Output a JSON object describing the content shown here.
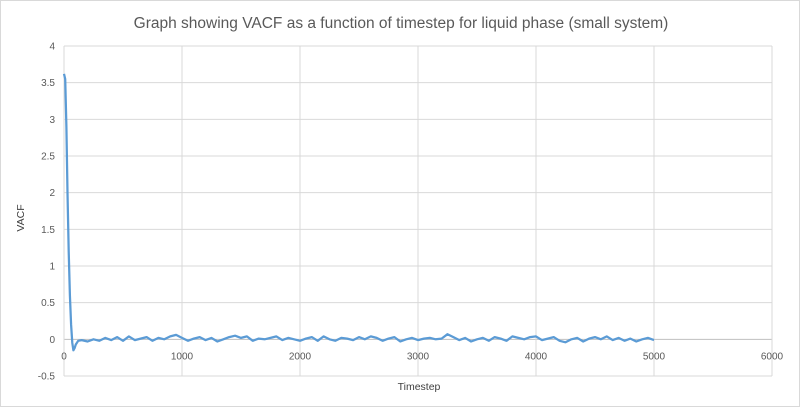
{
  "chart_data": {
    "type": "line",
    "title": "Graph showing VACF as a function of timestep for liquid phase (small system)",
    "xlabel": "Timestep",
    "ylabel": "VACF",
    "xlim": [
      0,
      6000
    ],
    "ylim": [
      -0.5,
      4
    ],
    "xticks": [
      "0",
      "1000",
      "2000",
      "3000",
      "4000",
      "5000",
      "6000"
    ],
    "yticks": [
      "-0.5",
      "0",
      "0.5",
      "1",
      "1.5",
      "2",
      "2.5",
      "3",
      "3.5",
      "4"
    ],
    "grid": true,
    "legend": "none",
    "line_color": "#5b9bd5",
    "series": [
      {
        "x": [
          0,
          10,
          20,
          30,
          40,
          50,
          60,
          70,
          80,
          90,
          100,
          120,
          150,
          200,
          250,
          300,
          350,
          400,
          450,
          500,
          550,
          600,
          650,
          700,
          750,
          800,
          850,
          900,
          950,
          1000,
          1050,
          1100,
          1150,
          1200,
          1250,
          1300,
          1350,
          1400,
          1450,
          1500,
          1550,
          1600,
          1650,
          1700,
          1750,
          1800,
          1850,
          1900,
          1950,
          2000,
          2050,
          2100,
          2150,
          2200,
          2250,
          2300,
          2350,
          2400,
          2450,
          2500,
          2550,
          2600,
          2650,
          2700,
          2750,
          2800,
          2850,
          2900,
          2950,
          3000,
          3050,
          3100,
          3150,
          3200,
          3250,
          3300,
          3350,
          3400,
          3450,
          3500,
          3550,
          3600,
          3650,
          3700,
          3750,
          3800,
          3850,
          3900,
          3950,
          4000,
          4050,
          4100,
          4150,
          4200,
          4250,
          4300,
          4350,
          4400,
          4450,
          4500,
          4550,
          4600,
          4650,
          4700,
          4750,
          4800,
          4850,
          4900,
          4950,
          5000
        ],
        "y": [
          3.62,
          3.55,
          2.9,
          2.0,
          1.2,
          0.6,
          0.2,
          -0.05,
          -0.15,
          -0.12,
          -0.07,
          -0.02,
          -0.01,
          -0.03,
          0.0,
          -0.02,
          0.02,
          -0.01,
          0.03,
          -0.02,
          0.04,
          -0.01,
          0.01,
          0.03,
          -0.02,
          0.02,
          0.0,
          0.04,
          0.06,
          0.02,
          -0.02,
          0.01,
          0.03,
          -0.01,
          0.02,
          -0.03,
          0.0,
          0.03,
          0.05,
          0.02,
          0.04,
          -0.02,
          0.01,
          0.0,
          0.02,
          0.04,
          -0.01,
          0.02,
          0.0,
          -0.02,
          0.01,
          0.03,
          -0.02,
          0.04,
          0.0,
          -0.02,
          0.02,
          0.01,
          -0.01,
          0.03,
          0.0,
          0.04,
          0.02,
          -0.02,
          0.01,
          0.03,
          -0.03,
          0.0,
          0.02,
          -0.01,
          0.01,
          0.02,
          0.0,
          0.01,
          0.07,
          0.03,
          -0.01,
          0.02,
          -0.03,
          0.0,
          0.02,
          -0.02,
          0.03,
          0.01,
          -0.02,
          0.04,
          0.02,
          0.0,
          0.03,
          0.04,
          -0.01,
          0.01,
          0.03,
          -0.02,
          -0.04,
          0.0,
          0.02,
          -0.03,
          0.01,
          0.03,
          0.0,
          0.04,
          -0.01,
          0.02,
          -0.02,
          0.01,
          -0.03,
          0.0,
          0.02,
          -0.01
        ]
      }
    ]
  }
}
